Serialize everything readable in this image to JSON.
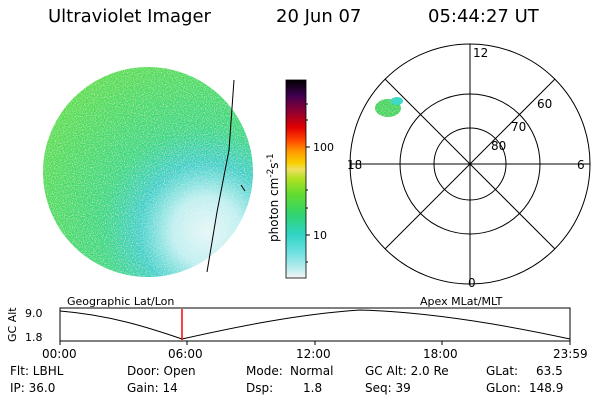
{
  "header": {
    "title": "Ultraviolet Imager",
    "date": "20 Jun 07",
    "time": "05:44:27 UT"
  },
  "colorbar": {
    "label_prefix": "photon cm",
    "label_exp1": "-2",
    "label_mid": "s",
    "label_exp2": "-1",
    "ticks": [
      "100",
      "10"
    ]
  },
  "polar_plot": {
    "mlt_labels": {
      "top": "12",
      "left": "18",
      "right": "6",
      "bottom": "0"
    },
    "lat_labels": [
      "60",
      "70",
      "80"
    ]
  },
  "orbit_panel": {
    "left_label": "Geographic Lat/Lon",
    "right_label": "Apex MLat/MLT",
    "axis_label": "GC Alt",
    "y_max": "9.0",
    "y_min": "1.8",
    "x_ticks": [
      "00:00",
      "06:00",
      "12:00",
      "18:00",
      "23:59"
    ]
  },
  "info": {
    "row1": {
      "flt": "Flt: LBHL",
      "door": "Door: Open",
      "mode_label": "Mode:",
      "mode_value": "Normal",
      "gcalt": "GC Alt: 2.0 Re",
      "glat_label": "GLat:",
      "glat_value": "63.5"
    },
    "row2": {
      "ip": "IP: 36.0",
      "gain": "Gain: 14",
      "dsp_label": "Dsp:",
      "dsp_value": "1.8",
      "seq": "Seq: 39",
      "glon_label": "GLon:",
      "glon_value": "148.9"
    }
  },
  "colors": {
    "disk_main": "#3cdc64",
    "disk_dim": "#2ecfc0",
    "disk_low": "#bfeff0",
    "cursor": "#ff0000"
  }
}
